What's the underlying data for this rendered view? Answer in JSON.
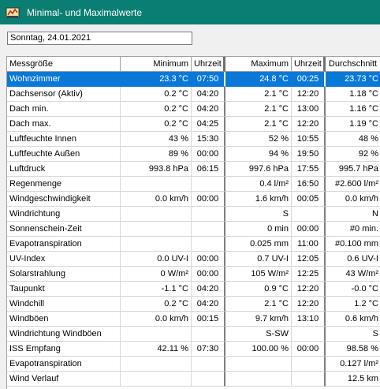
{
  "window": {
    "title": "Minimal- und Maximalwerte",
    "icon": "app-icon"
  },
  "date_field": {
    "value": "Sonntag, 24.01.2021"
  },
  "table": {
    "headers": [
      "Messgröße",
      "Minimum",
      "Uhrzeit",
      "Maximum",
      "Uhrzeit",
      "Durchschnitt"
    ],
    "selected_row": 0,
    "selection_color": "#0a78d7",
    "rows": [
      [
        "Wohnzimmer",
        "23.3 °C",
        "07:50",
        "24.8 °C",
        "00:25",
        "23.73 °C"
      ],
      [
        "Dachsensor (Aktiv)",
        "0.2 °C",
        "04:20",
        "2.1 °C",
        "12:20",
        "1.18 °C"
      ],
      [
        "Dach min.",
        "0.2 °C",
        "04:20",
        "2.1 °C",
        "13:00",
        "1.16 °C"
      ],
      [
        "Dach max.",
        "0.2 °C",
        "04:25",
        "2.1 °C",
        "12:20",
        "1.19 °C"
      ],
      [
        "Luftfeuchte Innen",
        "43 %",
        "15:30",
        "52 %",
        "10:55",
        "48 %"
      ],
      [
        "Luftfeuchte Außen",
        "89 %",
        "00:00",
        "94 %",
        "19:50",
        "92 %"
      ],
      [
        "Luftdruck",
        "993.8 hPa",
        "06:15",
        "997.6 hPa",
        "17:55",
        "995.7 hPa"
      ],
      [
        "Regenmenge",
        "",
        "",
        "0.4 l/m²",
        "16:50",
        "#2.600 l/m²"
      ],
      [
        "Windgeschwindigkeit",
        "0.0 km/h",
        "00:00",
        "1.6 km/h",
        "00:05",
        "0.0 km/h"
      ],
      [
        "Windrichtung",
        "",
        "",
        "S",
        "",
        "N"
      ],
      [
        "Sonnenschein-Zeit",
        "",
        "",
        "0 min",
        "00:00",
        "#0 min."
      ],
      [
        "Evapotranspiration",
        "",
        "",
        "0.025 mm",
        "11:00",
        "#0.100 mm"
      ],
      [
        "UV-Index",
        "0.0 UV-I",
        "00:00",
        "0.7 UV-I",
        "12:05",
        "0.6 UV-I"
      ],
      [
        "Solarstrahlung",
        "0 W/m²",
        "00:00",
        "105 W/m²",
        "12:25",
        "43 W/m²"
      ],
      [
        "Taupunkt",
        "-1.1 °C",
        "04:20",
        "0.9 °C",
        "12:20",
        "-0.0 °C"
      ],
      [
        "Windchill",
        "0.2 °C",
        "04:20",
        "2.1 °C",
        "12:20",
        "1.2 °C"
      ],
      [
        "Windböen",
        "0.0 km/h",
        "00:15",
        "9.7 km/h",
        "13:10",
        "0.6 km/h"
      ],
      [
        "Windrichtung Windböen",
        "",
        "",
        "S-SW",
        "",
        "S"
      ],
      [
        "ISS Empfang",
        "42.11 %",
        "07:30",
        "100.00 %",
        "00:00",
        "98.58 %"
      ],
      [
        "Evapotranspiration",
        "",
        "",
        "",
        "",
        "0.127 l/m²"
      ],
      [
        "Wind Verlauf",
        "",
        "",
        "",
        "",
        "12.5 km"
      ]
    ]
  }
}
